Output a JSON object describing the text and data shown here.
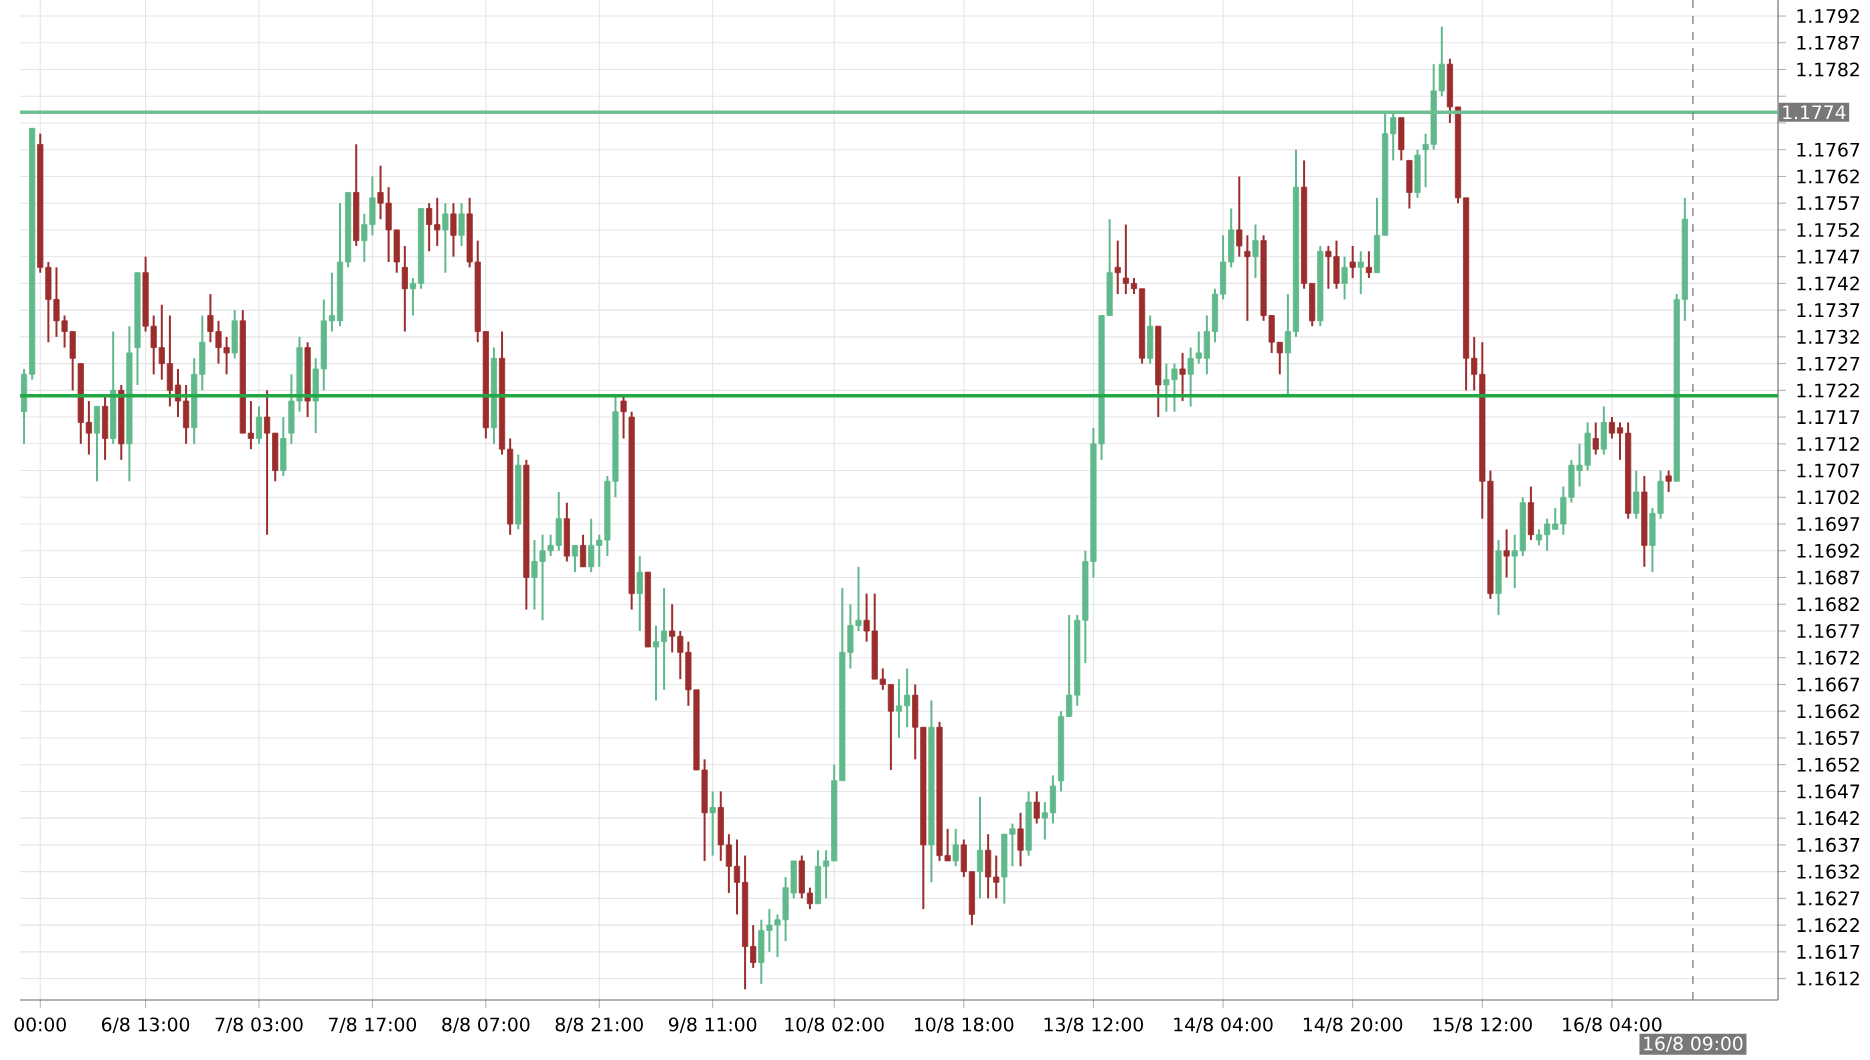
{
  "chart_data": {
    "type": "candlestick",
    "categories": [
      null,
      null,
      "00:00",
      null,
      null,
      null,
      null,
      null,
      null,
      null,
      null,
      null,
      null,
      null,
      null,
      "6/8 13:00",
      null,
      null,
      null,
      null,
      null,
      null,
      null,
      null,
      null,
      null,
      null,
      null,
      null,
      "7/8 03:00",
      null,
      null,
      null,
      null,
      null,
      null,
      null,
      null,
      null,
      null,
      null,
      null,
      null,
      "7/8 17:00",
      null,
      null,
      null,
      null,
      null,
      null,
      null,
      null,
      null,
      null,
      null,
      null,
      null,
      "8/8 07:00",
      null,
      null,
      null,
      null,
      null,
      null,
      null,
      null,
      null,
      null,
      null,
      null,
      null,
      "8/8 21:00",
      null,
      null,
      null,
      null,
      null,
      null,
      null,
      null,
      null,
      null,
      null,
      null,
      null,
      "9/8 11:00",
      null,
      null,
      null,
      null,
      null,
      null,
      null,
      null,
      null,
      null,
      null,
      null,
      null,
      null,
      "10/8 02:00",
      null,
      null,
      null,
      null,
      null,
      null,
      null,
      null,
      null,
      null,
      null,
      null,
      null,
      null,
      null,
      "10/8 18:00",
      null,
      null,
      null,
      null,
      null,
      null,
      null,
      null,
      null,
      null,
      null,
      null,
      null,
      null,
      null,
      "13/8 12:00",
      null,
      null,
      null,
      null,
      null,
      null,
      null,
      null,
      null,
      null,
      null,
      null,
      null,
      null,
      null,
      "14/8 04:00",
      null,
      null,
      null,
      null,
      null,
      null,
      null,
      null,
      null,
      null,
      null,
      null,
      null,
      null,
      null,
      "14/8 20:00",
      null,
      null,
      null,
      null,
      null,
      null,
      null,
      null,
      null,
      null,
      null,
      null,
      null,
      null,
      null,
      "15/8 12:00",
      null,
      null,
      null,
      null,
      null,
      null,
      null,
      null,
      null,
      null,
      null,
      null,
      null,
      null,
      null,
      "16/8 04:00",
      null,
      null,
      null,
      null,
      null,
      null,
      null,
      null,
      null,
      "16/8 09:00",
      null,
      null,
      null,
      null,
      null,
      null,
      null,
      null,
      null,
      null
    ],
    "ohlc": [
      [
        1.1718,
        1.1726,
        1.1712,
        1.1725
      ],
      [
        1.1725,
        1.1771,
        1.1724,
        1.1771
      ],
      [
        1.1768,
        1.177,
        1.1744,
        1.1745
      ],
      [
        1.1745,
        1.1746,
        1.1731,
        1.1739
      ],
      [
        1.1739,
        1.1745,
        1.1732,
        1.1735
      ],
      [
        1.1735,
        1.1736,
        1.173,
        1.1733
      ],
      [
        1.1733,
        1.1733,
        1.1722,
        1.1728
      ],
      [
        1.1727,
        1.1727,
        1.1712,
        1.1716
      ],
      [
        1.1716,
        1.172,
        1.171,
        1.1714
      ],
      [
        1.1714,
        1.1719,
        1.1705,
        1.1719
      ],
      [
        1.1719,
        1.1721,
        1.1709,
        1.1713
      ],
      [
        1.1713,
        1.1733,
        1.1712,
        1.1722
      ],
      [
        1.1722,
        1.1723,
        1.1709,
        1.1712
      ],
      [
        1.1712,
        1.1734,
        1.1705,
        1.1729
      ],
      [
        1.173,
        1.1744,
        1.1723,
        1.1744
      ],
      [
        1.1744,
        1.1747,
        1.1733,
        1.1734
      ],
      [
        1.1734,
        1.1736,
        1.1725,
        1.173
      ],
      [
        1.173,
        1.1738,
        1.1724,
        1.1727
      ],
      [
        1.1727,
        1.1736,
        1.1719,
        1.1722
      ],
      [
        1.1723,
        1.1726,
        1.1717,
        1.172
      ],
      [
        1.172,
        1.1723,
        1.1712,
        1.1715
      ],
      [
        1.1715,
        1.1728,
        1.1712,
        1.1725
      ],
      [
        1.1725,
        1.1736,
        1.1722,
        1.1731
      ],
      [
        1.1736,
        1.174,
        1.1731,
        1.1733
      ],
      [
        1.1733,
        1.1735,
        1.1727,
        1.173
      ],
      [
        1.173,
        1.1732,
        1.1725,
        1.1729
      ],
      [
        1.1729,
        1.1737,
        1.1728,
        1.1735
      ],
      [
        1.1735,
        1.1737,
        1.1714,
        1.1714
      ],
      [
        1.1714,
        1.172,
        1.1711,
        1.1713
      ],
      [
        1.1713,
        1.1719,
        1.1712,
        1.1717
      ],
      [
        1.1717,
        1.1722,
        1.1695,
        1.1714
      ],
      [
        1.1714,
        1.1714,
        1.1705,
        1.1707
      ],
      [
        1.1707,
        1.1717,
        1.1706,
        1.1713
      ],
      [
        1.1714,
        1.1725,
        1.1712,
        1.172
      ],
      [
        1.172,
        1.1732,
        1.1718,
        1.173
      ],
      [
        1.173,
        1.1731,
        1.1717,
        1.172
      ],
      [
        1.172,
        1.1728,
        1.1714,
        1.1726
      ],
      [
        1.1726,
        1.1739,
        1.1722,
        1.1735
      ],
      [
        1.1735,
        1.1744,
        1.1733,
        1.1736
      ],
      [
        1.1735,
        1.1757,
        1.1734,
        1.1746
      ],
      [
        1.1746,
        1.1759,
        1.1745,
        1.1759
      ],
      [
        1.1759,
        1.1768,
        1.1749,
        1.175
      ],
      [
        1.175,
        1.1755,
        1.1746,
        1.1753
      ],
      [
        1.1753,
        1.1762,
        1.1751,
        1.1758
      ],
      [
        1.1759,
        1.1764,
        1.1754,
        1.1757
      ],
      [
        1.1757,
        1.176,
        1.1746,
        1.1752
      ],
      [
        1.1752,
        1.1752,
        1.1744,
        1.1746
      ],
      [
        1.1745,
        1.1749,
        1.1733,
        1.1741
      ],
      [
        1.1741,
        1.1743,
        1.1736,
        1.1742
      ],
      [
        1.1742,
        1.1756,
        1.1741,
        1.1756
      ],
      [
        1.1756,
        1.1757,
        1.1748,
        1.1753
      ],
      [
        1.1753,
        1.1758,
        1.1749,
        1.1752
      ],
      [
        1.1752,
        1.1757,
        1.1744,
        1.1755
      ],
      [
        1.1755,
        1.1757,
        1.1747,
        1.1751
      ],
      [
        1.1751,
        1.1757,
        1.1749,
        1.1755
      ],
      [
        1.1755,
        1.1758,
        1.1745,
        1.1746
      ],
      [
        1.1746,
        1.175,
        1.1731,
        1.1733
      ],
      [
        1.1733,
        1.1733,
        1.1713,
        1.1715
      ],
      [
        1.1715,
        1.173,
        1.1712,
        1.1728
      ],
      [
        1.1728,
        1.1733,
        1.171,
        1.1711
      ],
      [
        1.1711,
        1.1713,
        1.1695,
        1.1697
      ],
      [
        1.1697,
        1.171,
        1.1696,
        1.1708
      ],
      [
        1.1708,
        1.1709,
        1.1681,
        1.1687
      ],
      [
        1.1687,
        1.1694,
        1.1681,
        1.169
      ],
      [
        1.169,
        1.1695,
        1.1679,
        1.1692
      ],
      [
        1.1692,
        1.1695,
        1.1691,
        1.1693
      ],
      [
        1.1693,
        1.1703,
        1.1692,
        1.1698
      ],
      [
        1.1698,
        1.1701,
        1.169,
        1.1691
      ],
      [
        1.1691,
        1.1693,
        1.1688,
        1.1693
      ],
      [
        1.1693,
        1.1695,
        1.1689,
        1.1689
      ],
      [
        1.1689,
        1.1698,
        1.1688,
        1.1693
      ],
      [
        1.1693,
        1.1695,
        1.1689,
        1.1694
      ],
      [
        1.1694,
        1.1706,
        1.1691,
        1.1705
      ],
      [
        1.1705,
        1.1721,
        1.1702,
        1.1718
      ],
      [
        1.172,
        1.1721,
        1.1713,
        1.1718
      ],
      [
        1.1717,
        1.1718,
        1.1681,
        1.1684
      ],
      [
        1.1684,
        1.1691,
        1.1677,
        1.1688
      ],
      [
        1.1688,
        1.1688,
        1.1674,
        1.1674
      ],
      [
        1.1674,
        1.1678,
        1.1664,
        1.1675
      ],
      [
        1.1675,
        1.1685,
        1.1666,
        1.1677
      ],
      [
        1.1677,
        1.1682,
        1.1673,
        1.1676
      ],
      [
        1.1676,
        1.1677,
        1.1668,
        1.1673
      ],
      [
        1.1673,
        1.1675,
        1.1663,
        1.1666
      ],
      [
        1.1666,
        1.1666,
        1.1651,
        1.1651
      ],
      [
        1.1651,
        1.1653,
        1.1634,
        1.1643
      ],
      [
        1.1643,
        1.1647,
        1.1635,
        1.1644
      ],
      [
        1.1644,
        1.1647,
        1.1634,
        1.1637
      ],
      [
        1.1637,
        1.1639,
        1.1628,
        1.1633
      ],
      [
        1.1633,
        1.1638,
        1.1624,
        1.163
      ],
      [
        1.163,
        1.1635,
        1.161,
        1.1618
      ],
      [
        1.1618,
        1.1622,
        1.1614,
        1.1615
      ],
      [
        1.1615,
        1.1623,
        1.1611,
        1.1621
      ],
      [
        1.1621,
        1.1625,
        1.1617,
        1.1622
      ],
      [
        1.1622,
        1.1624,
        1.1616,
        1.1623
      ],
      [
        1.1623,
        1.1631,
        1.1619,
        1.1629
      ],
      [
        1.1628,
        1.1634,
        1.1627,
        1.1634
      ],
      [
        1.1634,
        1.1635,
        1.1627,
        1.1628
      ],
      [
        1.1628,
        1.1629,
        1.1625,
        1.1626
      ],
      [
        1.1626,
        1.1636,
        1.1626,
        1.1633
      ],
      [
        1.1633,
        1.1636,
        1.1627,
        1.1634
      ],
      [
        1.1634,
        1.1652,
        1.1634,
        1.1649
      ],
      [
        1.1649,
        1.1685,
        1.1649,
        1.1673
      ],
      [
        1.1673,
        1.1682,
        1.167,
        1.1678
      ],
      [
        1.1678,
        1.1689,
        1.1677,
        1.1679
      ],
      [
        1.1679,
        1.1684,
        1.1675,
        1.1677
      ],
      [
        1.1677,
        1.1684,
        1.1668,
        1.1668
      ],
      [
        1.1668,
        1.167,
        1.1666,
        1.1667
      ],
      [
        1.1667,
        1.1667,
        1.1651,
        1.1662
      ],
      [
        1.1662,
        1.1668,
        1.1657,
        1.1663
      ],
      [
        1.1663,
        1.167,
        1.1659,
        1.1665
      ],
      [
        1.1665,
        1.1667,
        1.1653,
        1.1659
      ],
      [
        1.1659,
        1.1659,
        1.1625,
        1.1637
      ],
      [
        1.1637,
        1.1664,
        1.163,
        1.1659
      ],
      [
        1.1659,
        1.166,
        1.1634,
        1.1635
      ],
      [
        1.1635,
        1.164,
        1.1634,
        1.1634
      ],
      [
        1.1634,
        1.164,
        1.1633,
        1.1637
      ],
      [
        1.1637,
        1.1638,
        1.1631,
        1.1632
      ],
      [
        1.1632,
        1.1632,
        1.1622,
        1.1624
      ],
      [
        1.1632,
        1.1646,
        1.1627,
        1.1636
      ],
      [
        1.1636,
        1.1639,
        1.1627,
        1.1631
      ],
      [
        1.1631,
        1.1635,
        1.1627,
        1.163
      ],
      [
        1.1631,
        1.1639,
        1.1626,
        1.1639
      ],
      [
        1.1639,
        1.1641,
        1.1633,
        1.164
      ],
      [
        1.164,
        1.1643,
        1.1633,
        1.1636
      ],
      [
        1.1636,
        1.1647,
        1.1635,
        1.1645
      ],
      [
        1.1645,
        1.1647,
        1.1641,
        1.1642
      ],
      [
        1.1642,
        1.1645,
        1.1638,
        1.1643
      ],
      [
        1.1643,
        1.165,
        1.1641,
        1.1648
      ],
      [
        1.1649,
        1.1662,
        1.1647,
        1.1661
      ],
      [
        1.1661,
        1.168,
        1.1661,
        1.1665
      ],
      [
        1.1665,
        1.168,
        1.1663,
        1.1679
      ],
      [
        1.1679,
        1.1692,
        1.1671,
        1.169
      ],
      [
        1.169,
        1.1715,
        1.1687,
        1.1712
      ],
      [
        1.1712,
        1.1736,
        1.1709,
        1.1736
      ],
      [
        1.1736,
        1.1754,
        1.1736,
        1.1744
      ],
      [
        1.1745,
        1.175,
        1.174,
        1.1744
      ],
      [
        1.1743,
        1.1753,
        1.174,
        1.1742
      ],
      [
        1.1742,
        1.1743,
        1.174,
        1.1741
      ],
      [
        1.1741,
        1.1741,
        1.1727,
        1.1728
      ],
      [
        1.1728,
        1.1736,
        1.1727,
        1.1734
      ],
      [
        1.1734,
        1.1734,
        1.1717,
        1.1723
      ],
      [
        1.1723,
        1.1727,
        1.1718,
        1.1724
      ],
      [
        1.1724,
        1.1727,
        1.1718,
        1.1726
      ],
      [
        1.1726,
        1.1729,
        1.172,
        1.1725
      ],
      [
        1.1725,
        1.173,
        1.1719,
        1.1728
      ],
      [
        1.1728,
        1.1733,
        1.1727,
        1.1729
      ],
      [
        1.1728,
        1.1736,
        1.1725,
        1.1733
      ],
      [
        1.1733,
        1.1741,
        1.1731,
        1.174
      ],
      [
        1.174,
        1.1751,
        1.1739,
        1.1746
      ],
      [
        1.1746,
        1.1756,
        1.1745,
        1.1752
      ],
      [
        1.1752,
        1.1762,
        1.1747,
        1.1749
      ],
      [
        1.1748,
        1.1751,
        1.1735,
        1.1747
      ],
      [
        1.1747,
        1.1753,
        1.1743,
        1.175
      ],
      [
        1.175,
        1.1751,
        1.1735,
        1.1736
      ],
      [
        1.1736,
        1.1736,
        1.1729,
        1.1731
      ],
      [
        1.1731,
        1.1731,
        1.1725,
        1.1729
      ],
      [
        1.1729,
        1.174,
        1.1721,
        1.1733
      ],
      [
        1.1733,
        1.1767,
        1.1732,
        1.176
      ],
      [
        1.176,
        1.1765,
        1.1741,
        1.1742
      ],
      [
        1.1742,
        1.1742,
        1.1734,
        1.1735
      ],
      [
        1.1735,
        1.1749,
        1.1734,
        1.1748
      ],
      [
        1.1748,
        1.1749,
        1.1741,
        1.1747
      ],
      [
        1.1747,
        1.175,
        1.1741,
        1.1742
      ],
      [
        1.1742,
        1.1747,
        1.1739,
        1.1745
      ],
      [
        1.1746,
        1.1749,
        1.1743,
        1.1745
      ],
      [
        1.1745,
        1.1748,
        1.174,
        1.1746
      ],
      [
        1.1745,
        1.1748,
        1.1743,
        1.1744
      ],
      [
        1.1744,
        1.1758,
        1.1744,
        1.1751
      ],
      [
        1.1751,
        1.1774,
        1.1751,
        1.177
      ],
      [
        1.177,
        1.1774,
        1.1765,
        1.1773
      ],
      [
        1.1773,
        1.1773,
        1.1765,
        1.1767
      ],
      [
        1.1765,
        1.1765,
        1.1756,
        1.1759
      ],
      [
        1.1759,
        1.1767,
        1.1758,
        1.1766
      ],
      [
        1.1767,
        1.177,
        1.176,
        1.1768
      ],
      [
        1.1768,
        1.1783,
        1.1767,
        1.1778
      ],
      [
        1.1778,
        1.179,
        1.1777,
        1.1783
      ],
      [
        1.1783,
        1.1784,
        1.1772,
        1.1775
      ],
      [
        1.1775,
        1.1775,
        1.1757,
        1.1758
      ],
      [
        1.1758,
        1.1758,
        1.1722,
        1.1728
      ],
      [
        1.1728,
        1.1732,
        1.1722,
        1.1725
      ],
      [
        1.1725,
        1.1731,
        1.1698,
        1.1705
      ],
      [
        1.1705,
        1.1707,
        1.1683,
        1.1684
      ],
      [
        1.1684,
        1.1694,
        1.168,
        1.1692
      ],
      [
        1.1692,
        1.1696,
        1.1687,
        1.1691
      ],
      [
        1.1691,
        1.1695,
        1.1685,
        1.1692
      ],
      [
        1.1692,
        1.1702,
        1.1691,
        1.1701
      ],
      [
        1.1701,
        1.1704,
        1.1694,
        1.1695
      ],
      [
        1.1694,
        1.1696,
        1.1693,
        1.1695
      ],
      [
        1.1695,
        1.1698,
        1.1692,
        1.1697
      ],
      [
        1.1696,
        1.17,
        1.1696,
        1.1697
      ],
      [
        1.1697,
        1.1704,
        1.1695,
        1.1702
      ],
      [
        1.1702,
        1.1709,
        1.1701,
        1.1708
      ],
      [
        1.1707,
        1.1712,
        1.1704,
        1.1708
      ],
      [
        1.1708,
        1.1716,
        1.1707,
        1.1714
      ],
      [
        1.1713,
        1.1716,
        1.171,
        1.1711
      ],
      [
        1.1711,
        1.1719,
        1.171,
        1.1716
      ],
      [
        1.1716,
        1.1717,
        1.1713,
        1.1714
      ],
      [
        1.1715,
        1.1716,
        1.1709,
        1.1714
      ],
      [
        1.1714,
        1.1716,
        1.1698,
        1.1699
      ],
      [
        1.1699,
        1.1707,
        1.1698,
        1.1703
      ],
      [
        1.1703,
        1.1706,
        1.1689,
        1.1693
      ],
      [
        1.1693,
        1.17,
        1.1688,
        1.1699
      ],
      [
        1.1699,
        1.1707,
        1.1698,
        1.1705
      ],
      [
        1.1706,
        1.1707,
        1.1703,
        1.1705
      ],
      [
        1.1705,
        1.174,
        1.1705,
        1.1739
      ],
      [
        1.1739,
        1.1758,
        1.1735,
        1.1754
      ],
      null,
      null,
      null,
      null,
      null,
      null,
      null,
      null,
      null,
      null,
      null
    ],
    "colors": [
      "#5fb98b",
      "#5fb98b",
      "#9b2d2d",
      "#9b2d2d",
      "#9b2d2d",
      "#9b2d2d",
      "#9b2d2d",
      "#9b2d2d",
      "#9b2d2d",
      "#5fb98b",
      "#9b2d2d",
      "#5fb98b",
      "#9b2d2d",
      "#5fb98b",
      "#5fb98b",
      "#9b2d2d",
      "#9b2d2d",
      "#9b2d2d",
      "#9b2d2d",
      "#9b2d2d",
      "#9b2d2d",
      "#5fb98b",
      "#5fb98b",
      "#9b2d2d",
      "#9b2d2d",
      "#9b2d2d",
      "#5fb98b",
      "#9b2d2d",
      "#9b2d2d",
      "#5fb98b",
      "#9b2d2d",
      "#9b2d2d",
      "#5fb98b",
      "#5fb98b",
      "#5fb98b",
      "#9b2d2d",
      "#5fb98b",
      "#5fb98b",
      "#5fb98b",
      "#5fb98b",
      "#5fb98b",
      "#9b2d2d",
      "#5fb98b",
      "#5fb98b",
      "#9b2d2d",
      "#9b2d2d",
      "#9b2d2d",
      "#9b2d2d",
      "#5fb98b",
      "#5fb98b",
      "#9b2d2d",
      "#9b2d2d",
      "#5fb98b",
      "#9b2d2d",
      "#5fb98b",
      "#9b2d2d",
      "#9b2d2d",
      "#9b2d2d",
      "#5fb98b",
      "#9b2d2d",
      "#9b2d2d",
      "#5fb98b",
      "#9b2d2d",
      "#5fb98b",
      "#5fb98b",
      "#5fb98b",
      "#5fb98b",
      "#9b2d2d",
      "#5fb98b",
      "#9b2d2d",
      "#5fb98b",
      "#5fb98b",
      "#5fb98b",
      "#5fb98b",
      "#9b2d2d",
      "#9b2d2d",
      "#5fb98b",
      "#9b2d2d",
      "#5fb98b",
      "#5fb98b",
      "#9b2d2d",
      "#9b2d2d",
      "#9b2d2d",
      "#9b2d2d",
      "#9b2d2d",
      "#5fb98b",
      "#9b2d2d",
      "#9b2d2d",
      "#9b2d2d",
      "#9b2d2d",
      "#9b2d2d",
      "#5fb98b",
      "#5fb98b",
      "#5fb98b",
      "#5fb98b",
      "#5fb98b",
      "#9b2d2d",
      "#9b2d2d",
      "#5fb98b",
      "#5fb98b",
      "#5fb98b",
      "#5fb98b",
      "#5fb98b",
      "#5fb98b",
      "#9b2d2d",
      "#9b2d2d",
      "#9b2d2d",
      "#9b2d2d",
      "#5fb98b",
      "#5fb98b",
      "#9b2d2d",
      "#9b2d2d",
      "#5fb98b",
      "#9b2d2d",
      "#9b2d2d",
      "#5fb98b",
      "#9b2d2d",
      "#9b2d2d",
      "#5fb98b",
      "#9b2d2d",
      "#9b2d2d",
      "#5fb98b",
      "#5fb98b",
      "#9b2d2d",
      "#5fb98b",
      "#9b2d2d",
      "#5fb98b",
      "#5fb98b",
      "#5fb98b",
      "#5fb98b",
      "#5fb98b",
      "#5fb98b",
      "#5fb98b",
      "#5fb98b",
      "#5fb98b",
      "#9b2d2d",
      "#9b2d2d",
      "#9b2d2d",
      "#9b2d2d",
      "#5fb98b",
      "#9b2d2d",
      "#5fb98b",
      "#5fb98b",
      "#9b2d2d",
      "#5fb98b",
      "#5fb98b",
      "#5fb98b",
      "#5fb98b",
      "#5fb98b",
      "#5fb98b",
      "#9b2d2d",
      "#9b2d2d",
      "#5fb98b",
      "#9b2d2d",
      "#9b2d2d",
      "#9b2d2d",
      "#5fb98b",
      "#5fb98b",
      "#9b2d2d",
      "#9b2d2d",
      "#5fb98b",
      "#9b2d2d",
      "#9b2d2d",
      "#5fb98b",
      "#9b2d2d",
      "#5fb98b",
      "#9b2d2d",
      "#5fb98b",
      "#5fb98b",
      "#5fb98b",
      "#9b2d2d",
      "#9b2d2d",
      "#5fb98b",
      "#5fb98b",
      "#5fb98b",
      "#5fb98b",
      "#9b2d2d",
      "#9b2d2d",
      "#9b2d2d",
      "#9b2d2d",
      "#9b2d2d",
      "#9b2d2d",
      "#5fb98b",
      "#9b2d2d",
      "#5fb98b",
      "#5fb98b",
      "#9b2d2d",
      "#5fb98b",
      "#5fb98b",
      "#5fb98b",
      "#5fb98b",
      "#5fb98b",
      "#5fb98b",
      "#5fb98b",
      "#9b2d2d",
      "#5fb98b",
      "#9b2d2d",
      "#9b2d2d",
      "#9b2d2d",
      "#5fb98b",
      "#9b2d2d",
      "#5fb98b",
      "#5fb98b",
      "#9b2d2d",
      "#5fb98b",
      "#5fb98b",
      null,
      null,
      null,
      null,
      null,
      null,
      null,
      null,
      null,
      null,
      null
    ],
    "ylim": [
      1.1608,
      1.1795
    ],
    "yticks": [
      1.1612,
      1.1617,
      1.1622,
      1.1627,
      1.1632,
      1.1637,
      1.1642,
      1.1647,
      1.1652,
      1.1657,
      1.1662,
      1.1667,
      1.1672,
      1.1677,
      1.1682,
      1.1687,
      1.1692,
      1.1697,
      1.1702,
      1.1707,
      1.1712,
      1.1717,
      1.1722,
      1.1727,
      1.1732,
      1.1737,
      1.1742,
      1.1747,
      1.1752,
      1.1757,
      1.1762,
      1.1767,
      {
        "value": 1.1772,
        "label": null
      },
      {
        "value": 1.1777,
        "label": null
      },
      1.1782,
      1.1787,
      1.1792
    ],
    "ref_lines": [
      {
        "axis": "y",
        "value": 1.1774,
        "label": "1.1774",
        "color": "#6dbf94",
        "line_style": "solid"
      },
      {
        "axis": "y",
        "value": 1.1721,
        "color": "#22a845",
        "line_style": "solid"
      },
      {
        "axis": "x",
        "value": "16/8 09:00",
        "color": "#808080",
        "line_style": "dashed"
      }
    ],
    "grid": true
  }
}
